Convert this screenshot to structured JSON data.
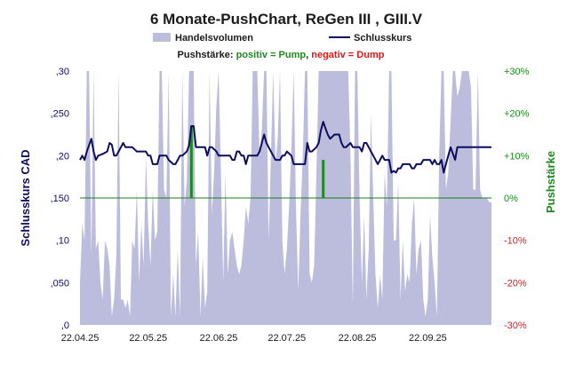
{
  "chart_data": {
    "type": "line",
    "title": "6 Monate-PushChart, ReGen III , GIII.V",
    "legend": {
      "volume_label": "Handelsvolumen",
      "close_label": "Schlusskurs",
      "position": "top-center"
    },
    "push_legend": {
      "prefix": "Pushstärke: ",
      "positive": "positiv = Pump",
      "separator": ", ",
      "negative": "negativ = Dump"
    },
    "ylabel_left": "Schlusskurs CAD",
    "ylabel_right": "Pushstärke",
    "left_axis": {
      "ylim": [
        0,
        0.3
      ],
      "ticks": [
        ",0",
        ",050",
        ",10",
        ",150",
        ",20",
        ",250",
        ",30"
      ]
    },
    "right_axis": {
      "ylim": [
        -30,
        30
      ],
      "ticks": [
        "-30%",
        "-20%",
        "-10%",
        "0%",
        "+10%",
        "+20%",
        "+30%"
      ]
    },
    "x_tick_labels": [
      "22.04.25",
      "22.05.25",
      "22.06.25",
      "22.07.25",
      "22.08.25",
      "22.09.25"
    ],
    "x_tick_days": [
      0,
      30,
      61,
      91,
      122,
      153
    ],
    "x_range_days": [
      0,
      181
    ],
    "grid": false,
    "zero_line_color": "#1e7b1e",
    "colors": {
      "close": "#0d0d5e",
      "volume": "#bcbcdc",
      "push_positive": "#1e8a1e",
      "push_negative": "#e01818",
      "left_axis": "#0d0d5e",
      "right_axis": "#1e8a1e",
      "right_axis_negative": "#e01818",
      "title": "#1a1a1a"
    },
    "close_series": [
      [
        0,
        0.195
      ],
      [
        1,
        0.2
      ],
      [
        2,
        0.195
      ],
      [
        3,
        0.205
      ],
      [
        5,
        0.22
      ],
      [
        6,
        0.205
      ],
      [
        7,
        0.195
      ],
      [
        8,
        0.2
      ],
      [
        10,
        0.202
      ],
      [
        12,
        0.205
      ],
      [
        13,
        0.215
      ],
      [
        14,
        0.213
      ],
      [
        15,
        0.2
      ],
      [
        16,
        0.2
      ],
      [
        17,
        0.205
      ],
      [
        19,
        0.215
      ],
      [
        20,
        0.21
      ],
      [
        21,
        0.21
      ],
      [
        23,
        0.21
      ],
      [
        25,
        0.205
      ],
      [
        27,
        0.205
      ],
      [
        29,
        0.205
      ],
      [
        30,
        0.2
      ],
      [
        31,
        0.2
      ],
      [
        32,
        0.19
      ],
      [
        34,
        0.19
      ],
      [
        35,
        0.2
      ],
      [
        37,
        0.2
      ],
      [
        38,
        0.2
      ],
      [
        39,
        0.195
      ],
      [
        41,
        0.19
      ],
      [
        42,
        0.19
      ],
      [
        43,
        0.195
      ],
      [
        44,
        0.2
      ],
      [
        45,
        0.2
      ],
      [
        47,
        0.205
      ],
      [
        48,
        0.212
      ],
      [
        49,
        0.235
      ],
      [
        50,
        0.235
      ],
      [
        51,
        0.21
      ],
      [
        52,
        0.21
      ],
      [
        54,
        0.21
      ],
      [
        55,
        0.21
      ],
      [
        56,
        0.2
      ],
      [
        57,
        0.21
      ],
      [
        58,
        0.21
      ],
      [
        60,
        0.205
      ],
      [
        61,
        0.2
      ],
      [
        63,
        0.2
      ],
      [
        65,
        0.2
      ],
      [
        66,
        0.2
      ],
      [
        67,
        0.195
      ],
      [
        68,
        0.195
      ],
      [
        69,
        0.205
      ],
      [
        70,
        0.205
      ],
      [
        71,
        0.2
      ],
      [
        72,
        0.2
      ],
      [
        73,
        0.19
      ],
      [
        74,
        0.2
      ],
      [
        76,
        0.2
      ],
      [
        78,
        0.2
      ],
      [
        79,
        0.205
      ],
      [
        80,
        0.215
      ],
      [
        81,
        0.225
      ],
      [
        82,
        0.215
      ],
      [
        83,
        0.21
      ],
      [
        85,
        0.2
      ],
      [
        86,
        0.195
      ],
      [
        87,
        0.195
      ],
      [
        88,
        0.195
      ],
      [
        89,
        0.2
      ],
      [
        90,
        0.2
      ],
      [
        91,
        0.205
      ],
      [
        93,
        0.2
      ],
      [
        94,
        0.19
      ],
      [
        95,
        0.19
      ],
      [
        96,
        0.19
      ],
      [
        98,
        0.19
      ],
      [
        99,
        0.19
      ],
      [
        100,
        0.215
      ],
      [
        101,
        0.205
      ],
      [
        102,
        0.205
      ],
      [
        104,
        0.21
      ],
      [
        105,
        0.215
      ],
      [
        106,
        0.23
      ],
      [
        107,
        0.24
      ],
      [
        108,
        0.232
      ],
      [
        109,
        0.225
      ],
      [
        110,
        0.22
      ],
      [
        112,
        0.225
      ],
      [
        113,
        0.225
      ],
      [
        114,
        0.225
      ],
      [
        115,
        0.215
      ],
      [
        116,
        0.21
      ],
      [
        117,
        0.21
      ],
      [
        119,
        0.215
      ],
      [
        120,
        0.21
      ],
      [
        122,
        0.21
      ],
      [
        123,
        0.21
      ],
      [
        124,
        0.205
      ],
      [
        125,
        0.215
      ],
      [
        126,
        0.215
      ],
      [
        127,
        0.21
      ],
      [
        128,
        0.205
      ],
      [
        129,
        0.2
      ],
      [
        130,
        0.195
      ],
      [
        131,
        0.19
      ],
      [
        132,
        0.195
      ],
      [
        133,
        0.2
      ],
      [
        134,
        0.195
      ],
      [
        135,
        0.195
      ],
      [
        136,
        0.195
      ],
      [
        137,
        0.18
      ],
      [
        138,
        0.182
      ],
      [
        139,
        0.18
      ],
      [
        140,
        0.185
      ],
      [
        141,
        0.185
      ],
      [
        142,
        0.19
      ],
      [
        144,
        0.19
      ],
      [
        145,
        0.19
      ],
      [
        146,
        0.185
      ],
      [
        147,
        0.185
      ],
      [
        148,
        0.19
      ],
      [
        150,
        0.19
      ],
      [
        151,
        0.195
      ],
      [
        152,
        0.195
      ],
      [
        154,
        0.195
      ],
      [
        155,
        0.19
      ],
      [
        156,
        0.195
      ],
      [
        157,
        0.19
      ],
      [
        158,
        0.19
      ],
      [
        159,
        0.195
      ],
      [
        160,
        0.18
      ],
      [
        161,
        0.19
      ],
      [
        162,
        0.2
      ],
      [
        163,
        0.21
      ],
      [
        165,
        0.195
      ],
      [
        166,
        0.21
      ],
      [
        168,
        0.21
      ],
      [
        170,
        0.21
      ],
      [
        172,
        0.21
      ],
      [
        181,
        0.21
      ]
    ],
    "push_series": [
      {
        "day": 49,
        "value": 17
      },
      {
        "day": 107,
        "value": 9
      }
    ],
    "volume_series": [
      [
        0,
        0.05
      ],
      [
        1,
        0.12
      ],
      [
        2,
        0.1
      ],
      [
        3,
        0.3
      ],
      [
        4,
        0.3
      ],
      [
        5,
        0.08
      ],
      [
        6,
        0.3
      ],
      [
        7,
        0.09
      ],
      [
        8,
        0.1
      ],
      [
        9,
        0.05
      ],
      [
        10,
        0.03
      ],
      [
        11,
        0.1
      ],
      [
        12,
        0.09
      ],
      [
        13,
        0.07
      ],
      [
        14,
        0.01
      ],
      [
        15,
        0.03
      ],
      [
        16,
        0.08
      ],
      [
        17,
        0.3
      ],
      [
        18,
        0.03
      ],
      [
        19,
        0.03
      ],
      [
        20,
        0.02
      ],
      [
        21,
        0.03
      ],
      [
        22,
        0.01
      ],
      [
        23,
        0.1
      ],
      [
        24,
        0.09
      ],
      [
        25,
        0.16
      ],
      [
        26,
        0.05
      ],
      [
        27,
        0.12
      ],
      [
        28,
        0.07
      ],
      [
        29,
        0.2
      ],
      [
        30,
        0.12
      ],
      [
        31,
        0.07
      ],
      [
        32,
        0.16
      ],
      [
        33,
        0.1
      ],
      [
        34,
        0.11
      ],
      [
        35,
        0.3
      ],
      [
        36,
        0.3
      ],
      [
        37,
        0.16
      ],
      [
        38,
        0.15
      ],
      [
        39,
        0.3
      ],
      [
        40,
        0.01
      ],
      [
        41,
        0.06
      ],
      [
        42,
        0.01
      ],
      [
        43,
        0.09
      ],
      [
        44,
        0.01
      ],
      [
        45,
        0.3
      ],
      [
        46,
        0.14
      ],
      [
        47,
        0.17
      ],
      [
        48,
        0.3
      ],
      [
        49,
        0.3
      ],
      [
        50,
        0.3
      ],
      [
        51,
        0.07
      ],
      [
        52,
        0.11
      ],
      [
        53,
        0.01
      ],
      [
        54,
        0.08
      ],
      [
        55,
        0.02
      ],
      [
        56,
        0.04
      ],
      [
        57,
        0.3
      ],
      [
        58,
        0.13
      ],
      [
        59,
        0.18
      ],
      [
        60,
        0.26
      ],
      [
        61,
        0.3
      ],
      [
        62,
        0.18
      ],
      [
        63,
        0.05
      ],
      [
        64,
        0.18
      ],
      [
        65,
        0.06
      ],
      [
        66,
        0.1
      ],
      [
        67,
        0.11
      ],
      [
        68,
        0.09
      ],
      [
        69,
        0.07
      ],
      [
        70,
        0.06
      ],
      [
        71,
        0.07
      ],
      [
        72,
        0.1
      ],
      [
        73,
        0.14
      ],
      [
        74,
        0.12
      ],
      [
        75,
        0.15
      ],
      [
        76,
        0.3
      ],
      [
        77,
        0.3
      ],
      [
        78,
        0.3
      ],
      [
        79,
        0.2
      ],
      [
        80,
        0.23
      ],
      [
        81,
        0.3
      ],
      [
        82,
        0.3
      ],
      [
        83,
        0.1
      ],
      [
        84,
        0.2
      ],
      [
        85,
        0.3
      ],
      [
        86,
        0.19
      ],
      [
        87,
        0.22
      ],
      [
        88,
        0.3
      ],
      [
        89,
        0.1
      ],
      [
        90,
        0.06
      ],
      [
        91,
        0.09
      ],
      [
        92,
        0.14
      ],
      [
        93,
        0.21
      ],
      [
        94,
        0.3
      ],
      [
        95,
        0.14
      ],
      [
        96,
        0.04
      ],
      [
        97,
        0.13
      ],
      [
        98,
        0.2
      ],
      [
        99,
        0.3
      ],
      [
        100,
        0.3
      ],
      [
        101,
        0.06
      ],
      [
        102,
        0.05
      ],
      [
        103,
        0.07
      ],
      [
        104,
        0.18
      ],
      [
        105,
        0.3
      ],
      [
        106,
        0.3
      ],
      [
        107,
        0.3
      ],
      [
        108,
        0.3
      ],
      [
        109,
        0.3
      ],
      [
        110,
        0.3
      ],
      [
        111,
        0.3
      ],
      [
        112,
        0.3
      ],
      [
        113,
        0.3
      ],
      [
        114,
        0.3
      ],
      [
        115,
        0.3
      ],
      [
        116,
        0.3
      ],
      [
        117,
        0.3
      ],
      [
        118,
        0.3
      ],
      [
        119,
        0.2
      ],
      [
        120,
        0.02
      ],
      [
        121,
        0.3
      ],
      [
        122,
        0.3
      ],
      [
        123,
        0.15
      ],
      [
        124,
        0.05
      ],
      [
        125,
        0.13
      ],
      [
        126,
        0.03
      ],
      [
        127,
        0.09
      ],
      [
        128,
        0.25
      ],
      [
        129,
        0.15
      ],
      [
        130,
        0.06
      ],
      [
        131,
        0.02
      ],
      [
        132,
        0.06
      ],
      [
        133,
        0.03
      ],
      [
        134,
        0.18
      ],
      [
        135,
        0.14
      ],
      [
        136,
        0.3
      ],
      [
        137,
        0.3
      ],
      [
        138,
        0.1
      ],
      [
        139,
        0.1
      ],
      [
        140,
        0.17
      ],
      [
        141,
        0.03
      ],
      [
        142,
        0.1
      ],
      [
        143,
        0.04
      ],
      [
        144,
        0.06
      ],
      [
        145,
        0.05
      ],
      [
        146,
        0.12
      ],
      [
        147,
        0.15
      ],
      [
        148,
        0.06
      ],
      [
        149,
        0.09
      ],
      [
        150,
        0.1
      ],
      [
        151,
        0.03
      ],
      [
        152,
        0.01
      ],
      [
        153,
        0.03
      ],
      [
        154,
        0.13
      ],
      [
        155,
        0.08
      ],
      [
        156,
        0.05
      ],
      [
        157,
        0.01
      ],
      [
        158,
        0.2
      ],
      [
        159,
        0.3
      ],
      [
        160,
        0.3
      ],
      [
        161,
        0.16
      ],
      [
        162,
        0.18
      ],
      [
        163,
        0.24
      ],
      [
        164,
        0.3
      ],
      [
        165,
        0.3
      ],
      [
        166,
        0.27
      ],
      [
        167,
        0.28
      ],
      [
        168,
        0.3
      ],
      [
        169,
        0.3
      ],
      [
        170,
        0.3
      ],
      [
        171,
        0.3
      ],
      [
        172,
        0.28
      ],
      [
        173,
        0.16
      ],
      [
        174,
        0.16
      ],
      [
        175,
        0.3
      ],
      [
        176,
        0.16
      ],
      [
        177,
        0.15
      ],
      [
        178,
        0.15
      ],
      [
        179,
        0.15
      ],
      [
        180,
        0.145
      ],
      [
        181,
        0.145
      ]
    ]
  }
}
